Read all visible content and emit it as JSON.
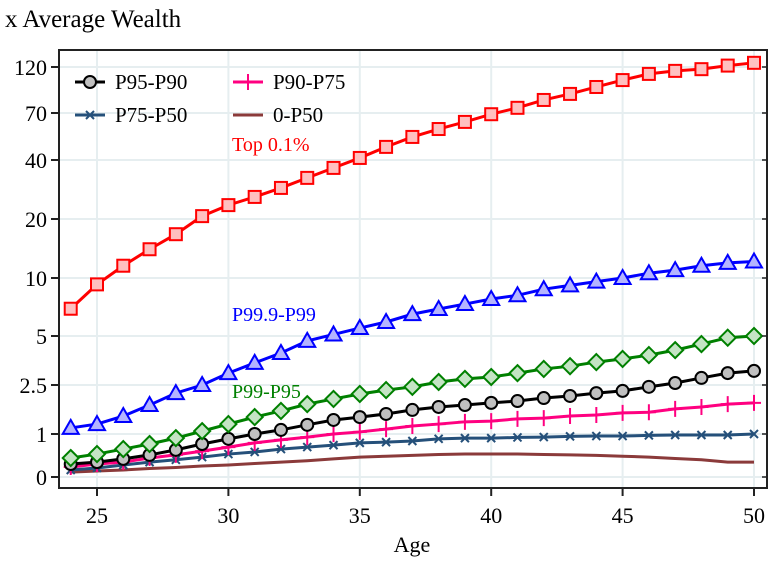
{
  "chart_data": {
    "type": "line",
    "title": "x Average Wealth",
    "xlabel": "Age",
    "ylabel": "",
    "xlim": [
      24,
      50
    ],
    "x_ticks": [
      25,
      30,
      35,
      40,
      45,
      50
    ],
    "y_ticks": [
      0,
      1,
      2.5,
      5,
      10,
      20,
      40,
      70,
      120
    ],
    "y_scale": "compressed (log-like, log(1+x/1.5))",
    "grid": true,
    "legend_placement": "top-left",
    "x": [
      24,
      25,
      26,
      27,
      28,
      29,
      30,
      31,
      32,
      33,
      34,
      35,
      36,
      37,
      38,
      39,
      40,
      41,
      42,
      43,
      44,
      45,
      46,
      47,
      48,
      49,
      50
    ],
    "series": [
      {
        "name": "Top 0.1%",
        "label_location": "inline",
        "color": "#ff0000",
        "fill": "#ffc0c0",
        "marker": "square",
        "values": [
          7.0,
          9.3,
          11.6,
          14.1,
          16.8,
          20.7,
          23.6,
          26,
          28.9,
          32.5,
          36.5,
          41,
          46.8,
          52.7,
          57.9,
          63,
          69,
          74.4,
          81.6,
          87.6,
          95,
          103,
          110.7,
          114.7,
          117,
          122,
          126
        ]
      },
      {
        "name": "P99.9-P99",
        "label_location": "inline",
        "color": "#0000ff",
        "fill": "#b4b4ff",
        "marker": "triangle",
        "values": [
          1.15,
          1.25,
          1.47,
          1.8,
          2.2,
          2.5,
          3.0,
          3.48,
          3.99,
          4.69,
          5.1,
          5.53,
          5.96,
          6.56,
          6.98,
          7.4,
          7.85,
          8.2,
          8.8,
          9.2,
          9.6,
          10,
          10.6,
          11,
          11.6,
          12.0,
          12.2
        ]
      },
      {
        "name": "P99-P95",
        "label_location": "inline",
        "color": "#008000",
        "fill": "#c4e4c4",
        "marker": "diamond",
        "values": [
          0.38,
          0.47,
          0.59,
          0.72,
          0.88,
          1.07,
          1.25,
          1.44,
          1.62,
          1.83,
          2.0,
          2.17,
          2.31,
          2.43,
          2.62,
          2.75,
          2.83,
          3.0,
          3.19,
          3.32,
          3.52,
          3.68,
          3.88,
          4.15,
          4.5,
          4.89,
          5.0
        ]
      },
      {
        "name": "P95-P90",
        "label_location": "legend",
        "color": "#000000",
        "fill": "#c0c0c0",
        "marker": "circle",
        "values": [
          0.25,
          0.29,
          0.36,
          0.45,
          0.57,
          0.72,
          0.86,
          1.0,
          1.1,
          1.23,
          1.36,
          1.44,
          1.53,
          1.65,
          1.74,
          1.8,
          1.87,
          1.93,
          2.03,
          2.1,
          2.2,
          2.28,
          2.43,
          2.58,
          2.79,
          3.0,
          3.1
        ]
      },
      {
        "name": "P90-P75",
        "label_location": "legend",
        "color": "#ff0080",
        "fill": "none",
        "marker": "plus",
        "values": [
          0.19,
          0.25,
          0.29,
          0.38,
          0.45,
          0.54,
          0.64,
          0.75,
          0.83,
          0.91,
          1.0,
          1.05,
          1.12,
          1.2,
          1.25,
          1.31,
          1.33,
          1.39,
          1.41,
          1.47,
          1.5,
          1.56,
          1.58,
          1.68,
          1.74,
          1.83,
          1.87
        ]
      },
      {
        "name": "P75-P50",
        "label_location": "legend",
        "color": "#25507a",
        "fill": "none",
        "marker": "x",
        "values": [
          0.13,
          0.17,
          0.23,
          0.29,
          0.34,
          0.4,
          0.47,
          0.52,
          0.59,
          0.64,
          0.69,
          0.75,
          0.77,
          0.8,
          0.86,
          0.88,
          0.88,
          0.9,
          0.91,
          0.93,
          0.94,
          0.94,
          0.96,
          0.97,
          0.97,
          0.97,
          1.0
        ]
      },
      {
        "name": "0-P50",
        "label_location": "legend",
        "color": "#8b3a3a",
        "fill": "none",
        "marker": "none",
        "values": [
          0.09,
          0.11,
          0.13,
          0.16,
          0.18,
          0.21,
          0.23,
          0.26,
          0.29,
          0.32,
          0.36,
          0.4,
          0.42,
          0.44,
          0.46,
          0.47,
          0.47,
          0.47,
          0.46,
          0.45,
          0.44,
          0.42,
          0.4,
          0.37,
          0.34,
          0.29,
          0.29
        ]
      }
    ],
    "legend_order": [
      "P95-P90",
      "P90-P75",
      "P75-P50",
      "0-P50"
    ]
  }
}
